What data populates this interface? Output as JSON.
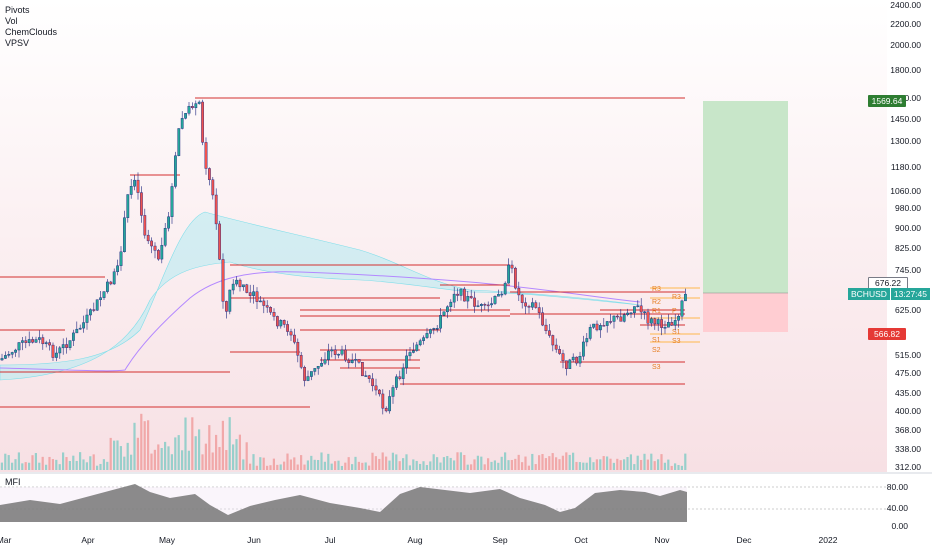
{
  "indicators": [
    "Pivots",
    "Vol",
    "ChemClouds",
    "VPSV"
  ],
  "mfi_label": "MFI",
  "price_axis": [
    "2400.00",
    "2200.00",
    "2000.00",
    "1800.00",
    "1600.00",
    "1450.00",
    "1300.00",
    "1180.00",
    "1060.00",
    "980.00",
    "900.00",
    "825.00",
    "745.00",
    "676.22",
    "625.00",
    "566.82",
    "515.00",
    "475.00",
    "435.00",
    "400.00",
    "368.00",
    "338.00",
    "312.00"
  ],
  "mfi_axis": [
    "80.00",
    "40.00",
    "0.00"
  ],
  "time_axis": [
    "Mar",
    "Apr",
    "May",
    "Jun",
    "Jul",
    "Aug",
    "Sep",
    "Oct",
    "Nov",
    "Dec",
    "2022"
  ],
  "price_tags": {
    "target": "1569.64",
    "current": "676.22",
    "stop": "566.82"
  },
  "symbol_tag": {
    "symbol": "BCHUSD",
    "countdown": "13:27:45"
  },
  "pivot_labels": [
    "R3",
    "R2",
    "R1",
    "P",
    "S1",
    "S2",
    "S3"
  ],
  "pivot_labels_last": [
    "R3",
    "S1",
    "S2",
    "S3"
  ],
  "colors": {
    "up": "#26a69a",
    "down": "#ef5350",
    "pivot": "#d32f2f",
    "target_box": "#c8e6c9",
    "stop_box": "#ffcdd2",
    "cloud": "#b2ebf2",
    "ema": "#b388ff",
    "mfi_fill": "#777777"
  }
}
